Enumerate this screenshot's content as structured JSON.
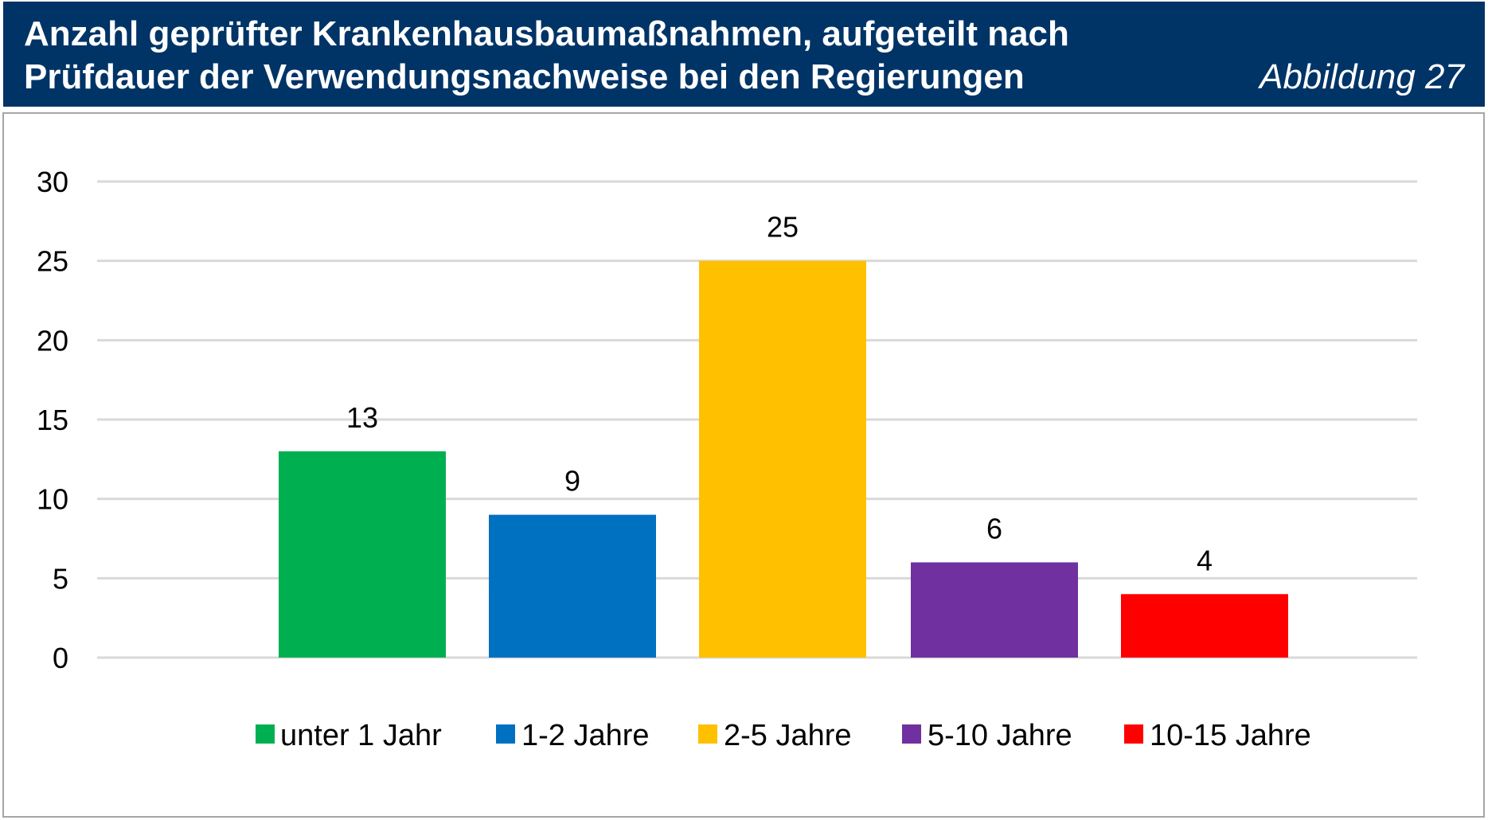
{
  "header": {
    "title_line1": "Anzahl geprüfter Krankenhausbaumaßnahmen, aufgeteilt nach",
    "title_line2": "Prüfdauer der Verwendungsnachweise bei den Regierungen",
    "figure_label": "Abbildung 27",
    "background_color": "#003466"
  },
  "chart_data": {
    "type": "bar",
    "title": "Anzahl geprüfter Krankenhausbaumaßnahmen, aufgeteilt nach Prüfdauer der Verwendungsnachweise bei den Regierungen",
    "categories": [
      "unter 1 Jahr",
      "1-2 Jahre",
      "2-5 Jahre",
      "5-10 Jahre",
      "10-15 Jahre"
    ],
    "values": [
      13,
      9,
      25,
      6,
      4
    ],
    "colors": [
      "#00b050",
      "#0070c0",
      "#ffc000",
      "#7030a0",
      "#ff0000"
    ],
    "data_labels": [
      "13",
      "9",
      "25",
      "6",
      "4"
    ],
    "yticks": [
      "0",
      "5",
      "10",
      "15",
      "20",
      "25",
      "30"
    ],
    "ylim": [
      0,
      30
    ],
    "xlabel": "",
    "ylabel": "",
    "grid": true,
    "legend_position": "bottom"
  }
}
